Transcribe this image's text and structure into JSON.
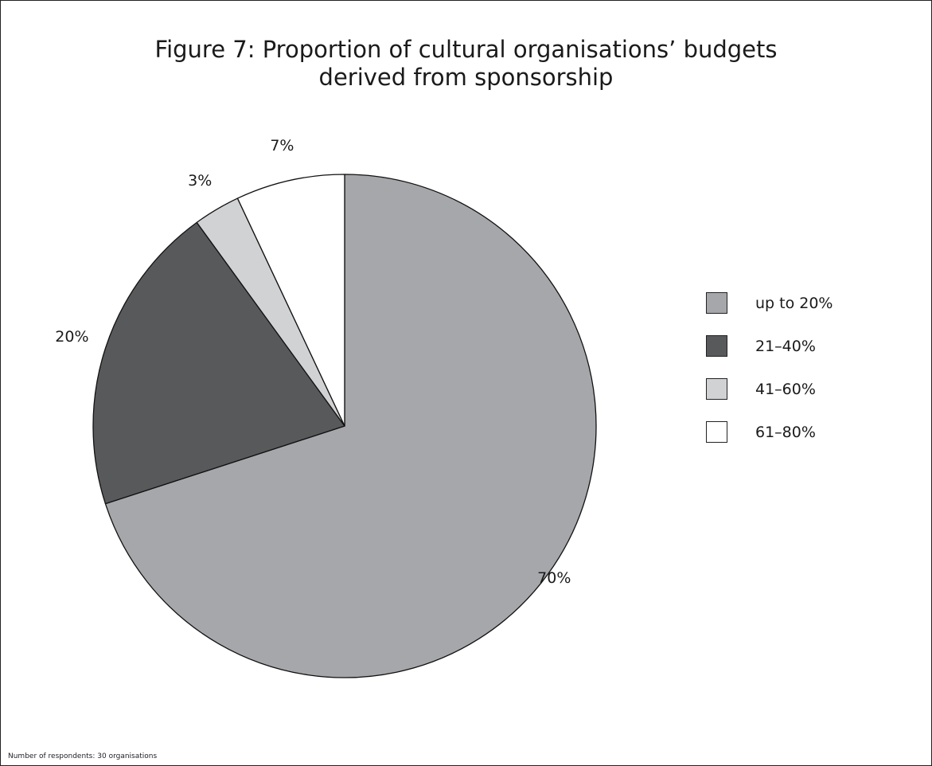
{
  "chart_data": {
    "type": "pie",
    "title_lines": [
      "Figure 7: Proportion of cultural organisations’ budgets",
      "derived from sponsorship"
    ],
    "categories": [
      "up to 20%",
      "21–40%",
      "41–60%",
      "61–80%"
    ],
    "values": [
      70,
      20,
      3,
      7
    ],
    "data_labels": [
      "70%",
      "20%",
      "3%",
      "7%"
    ],
    "colors": [
      "#a6a7aa",
      "#58595b",
      "#d1d2d4",
      "#ffffff"
    ],
    "legend_position": "right",
    "note": "Number of respondents: 30 organisations"
  }
}
